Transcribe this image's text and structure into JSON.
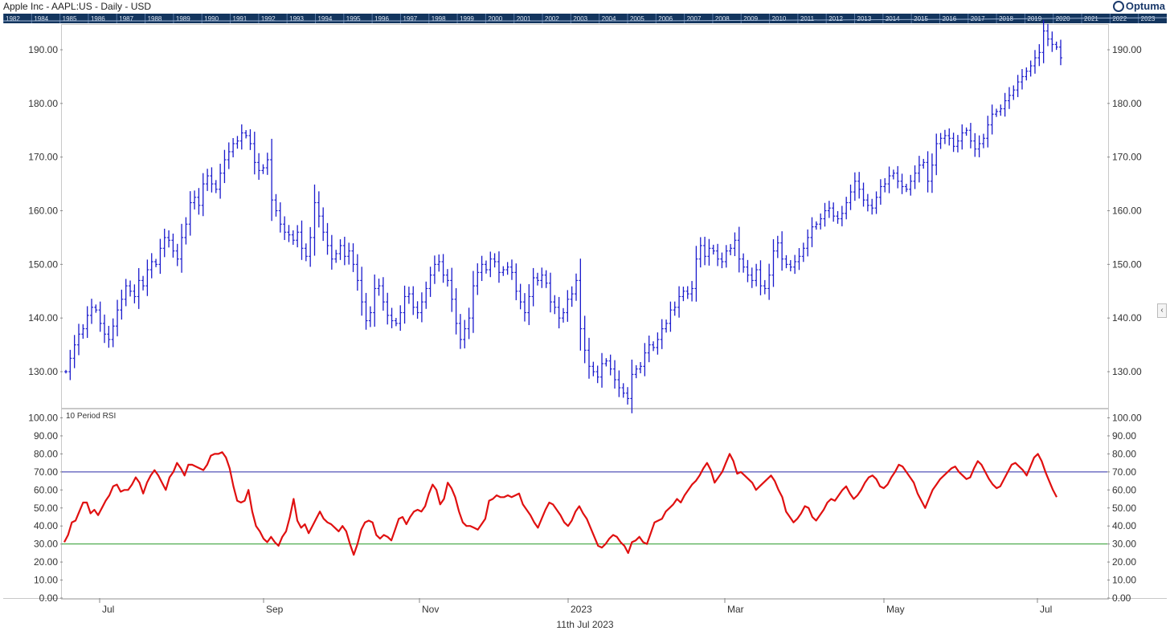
{
  "header": {
    "title": "Apple Inc - AAPL:US - Daily - USD",
    "logo_text": "Optuma"
  },
  "overview": {
    "years": [
      "1982",
      "1984",
      "1985",
      "1986",
      "1987",
      "1988",
      "1989",
      "1990",
      "1991",
      "1992",
      "1993",
      "1994",
      "1995",
      "1996",
      "1997",
      "1998",
      "1999",
      "2000",
      "2001",
      "2002",
      "2003",
      "2004",
      "2005",
      "2006",
      "2007",
      "2008",
      "2009",
      "2010",
      "2011",
      "2012",
      "2013",
      "2014",
      "2015",
      "2016",
      "2017",
      "2018",
      "2019",
      "2020",
      "2021",
      "2022",
      "2023"
    ],
    "background": "#13355e"
  },
  "footer": {
    "date_label": "11th Jul 2023"
  },
  "colors": {
    "price_bars": "#1a1acc",
    "rsi_line": "#e01010",
    "overbought_line": "#2a2aa8",
    "oversold_line": "#2a9a2a"
  },
  "chart_data": [
    {
      "type": "line",
      "subtype": "ohlc_bar",
      "title": "Apple Inc - AAPL:US - Daily - USD",
      "xlabel": "",
      "ylabel": "",
      "x_tick_labels": [
        "Jul",
        "Sep",
        "Nov",
        "2023",
        "Mar",
        "May",
        "Jul"
      ],
      "ylim": [
        123,
        195
      ],
      "y_ticks": [
        130,
        140,
        150,
        160,
        170,
        180,
        190
      ],
      "y_tick_labels": [
        "130.00",
        "140.00",
        "150.00",
        "160.00",
        "170.00",
        "180.00",
        "190.00"
      ],
      "grid": false,
      "series": [
        {
          "values": [
            130.0,
            132.5,
            135.0,
            137.0,
            138.0,
            140.5,
            142.0,
            141.5,
            139.0,
            137.0,
            136.0,
            138.5,
            141.5,
            143.5,
            146.0,
            145.0,
            144.0,
            147.0,
            146.0,
            149.0,
            150.5,
            150.0,
            153.0,
            155.0,
            154.5,
            152.5,
            151.0,
            155.0,
            157.5,
            161.5,
            162.5,
            161.0,
            165.0,
            166.5,
            165.0,
            164.0,
            167.0,
            169.5,
            171.0,
            172.5,
            173.0,
            174.5,
            174.0,
            172.5,
            169.0,
            167.5,
            168.0,
            169.5,
            162.0,
            160.0,
            157.5,
            156.0,
            155.5,
            154.5,
            156.0,
            153.0,
            151.5,
            155.0,
            161.5,
            159.0,
            156.0,
            153.5,
            151.0,
            152.0,
            153.5,
            151.5,
            152.5,
            150.0,
            147.0,
            143.0,
            139.5,
            141.0,
            145.5,
            146.0,
            143.0,
            140.5,
            139.5,
            139.0,
            141.0,
            144.0,
            144.5,
            142.0,
            141.0,
            143.0,
            145.5,
            148.0,
            150.0,
            150.5,
            148.0,
            147.0,
            143.5,
            139.0,
            136.0,
            138.0,
            140.0,
            146.0,
            148.5,
            150.0,
            149.0,
            151.0,
            150.5,
            148.5,
            149.0,
            149.5,
            148.5,
            145.0,
            143.0,
            141.0,
            144.0,
            147.5,
            147.0,
            148.0,
            146.5,
            143.0,
            142.0,
            140.0,
            141.0,
            143.5,
            144.5,
            147.0,
            138.0,
            134.0,
            131.0,
            130.0,
            129.0,
            131.5,
            132.0,
            130.5,
            128.5,
            127.0,
            126.0,
            125.0,
            129.5,
            130.5,
            131.0,
            133.5,
            135.0,
            134.5,
            136.0,
            138.0,
            139.0,
            141.5,
            142.0,
            144.0,
            145.0,
            144.5,
            145.5,
            151.0,
            153.5,
            151.5,
            153.0,
            152.5,
            151.0,
            150.5,
            152.5,
            153.0,
            154.5,
            151.0,
            149.5,
            148.0,
            147.0,
            149.0,
            146.0,
            145.5,
            148.0,
            152.5,
            154.0,
            151.0,
            150.0,
            149.5,
            150.5,
            151.5,
            153.0,
            155.0,
            157.0,
            157.5,
            158.5,
            160.0,
            160.5,
            159.0,
            158.5,
            159.5,
            161.5,
            163.5,
            165.5,
            164.0,
            162.0,
            161.0,
            160.5,
            162.5,
            164.5,
            165.0,
            166.5,
            167.0,
            165.5,
            164.5,
            164.0,
            165.5,
            167.0,
            168.5,
            169.0,
            165.5,
            168.5,
            172.5,
            173.5,
            174.0,
            173.5,
            172.0,
            173.0,
            174.5,
            175.0,
            173.0,
            171.5,
            172.5,
            173.5,
            176.0,
            178.0,
            178.5,
            179.0,
            180.5,
            181.5,
            182.5,
            184.0,
            185.0,
            186.0,
            187.0,
            188.5,
            189.5,
            193.5,
            192.0,
            191.0,
            190.5,
            188.5
          ]
        }
      ]
    },
    {
      "type": "line",
      "title": "10 Period RSI",
      "xlabel": "",
      "ylabel": "",
      "ylim": [
        0,
        100
      ],
      "y_ticks": [
        0,
        10,
        20,
        30,
        40,
        50,
        60,
        70,
        80,
        90,
        100
      ],
      "y_tick_labels": [
        "0.00",
        "10.00",
        "20.00",
        "30.00",
        "40.00",
        "50.00",
        "60.00",
        "70.00",
        "80.00",
        "90.00",
        "100.00"
      ],
      "reference_lines": [
        70,
        30
      ],
      "grid": false,
      "series": [
        {
          "values": [
            31,
            35,
            42,
            43,
            48,
            53,
            53,
            47,
            49,
            46,
            50,
            54,
            57,
            62,
            63,
            59,
            60,
            60,
            63,
            67,
            64,
            58,
            64,
            68,
            71,
            68,
            64,
            60,
            67,
            70,
            75,
            72,
            68,
            74,
            74,
            73,
            72,
            71,
            74,
            79,
            80,
            80,
            81,
            78,
            72,
            62,
            54,
            53,
            54,
            60,
            48,
            40,
            37,
            33,
            31,
            34,
            31,
            29,
            34,
            37,
            45,
            55,
            43,
            39,
            41,
            36,
            40,
            44,
            48,
            44,
            42,
            41,
            39,
            37,
            40,
            37,
            30,
            24,
            30,
            38,
            42,
            43,
            42,
            35,
            33,
            35,
            34,
            32,
            38,
            44,
            45,
            41,
            45,
            48,
            49,
            48,
            51,
            58,
            63,
            60,
            52,
            55,
            64,
            61,
            56,
            48,
            42,
            40,
            40,
            39,
            38,
            41,
            44,
            54,
            55,
            57,
            56,
            56,
            57,
            56,
            57,
            58,
            52,
            49,
            46,
            42,
            39,
            44,
            49,
            53,
            52,
            49,
            46,
            42,
            40,
            43,
            48,
            51,
            47,
            44,
            39,
            34,
            29,
            28,
            30,
            33,
            35,
            34,
            31,
            29,
            25,
            31,
            32,
            34,
            31,
            30,
            36,
            42,
            43,
            44,
            48,
            50,
            52,
            55,
            53,
            57,
            60,
            63,
            65,
            68,
            72,
            75,
            71,
            64,
            67,
            70,
            75,
            80,
            76,
            69,
            70,
            68,
            66,
            64,
            60,
            62,
            64,
            66,
            68,
            65,
            60,
            56,
            48,
            45,
            42,
            44,
            47,
            51,
            50,
            45,
            43,
            46,
            49,
            53,
            55,
            54,
            57,
            60,
            62,
            58,
            55,
            57,
            60,
            64,
            67,
            68,
            66,
            62,
            61,
            63,
            67,
            70,
            74,
            73,
            70,
            67,
            64,
            58,
            54,
            50,
            55,
            60,
            63,
            66,
            68,
            70,
            72,
            73,
            70,
            68,
            66,
            67,
            72,
            76,
            74,
            70,
            66,
            63,
            61,
            62,
            66,
            70,
            74,
            75,
            73,
            71,
            68,
            73,
            78,
            80,
            76,
            70,
            65,
            60,
            56
          ]
        }
      ]
    }
  ]
}
